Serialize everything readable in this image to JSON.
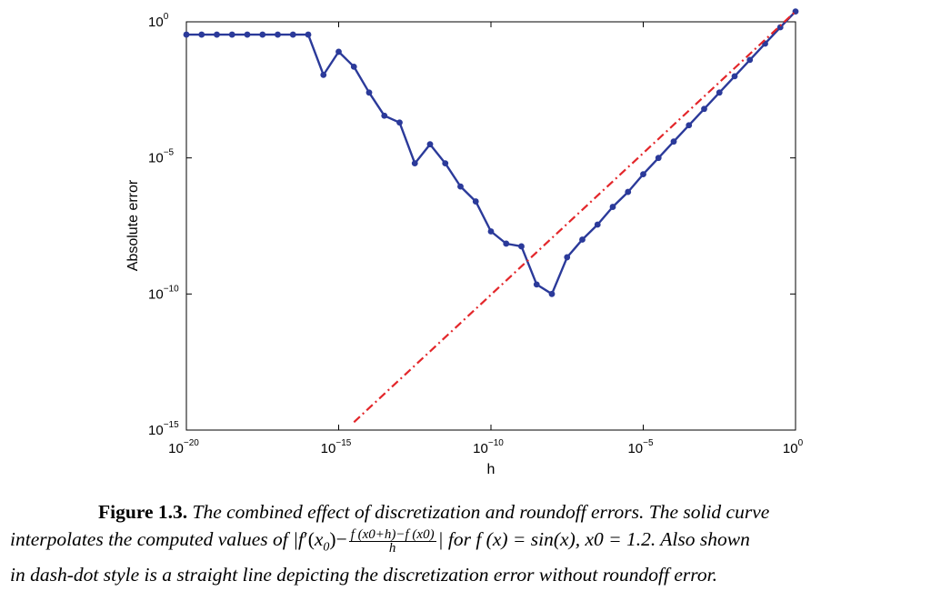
{
  "chart_data": {
    "type": "line",
    "xlabel": "h",
    "ylabel": "Absolute error",
    "xscale": "log",
    "yscale": "log",
    "xlim": [
      1e-20,
      1
    ],
    "ylim": [
      1e-15,
      1
    ],
    "grid": false,
    "x_ticks": [
      {
        "base": "10",
        "exp": "−20",
        "value": 1e-20
      },
      {
        "base": "10",
        "exp": "−15",
        "value": 1e-15
      },
      {
        "base": "10",
        "exp": "−10",
        "value": 1e-10
      },
      {
        "base": "10",
        "exp": "−5",
        "value": 1e-05
      },
      {
        "base": "10",
        "exp": "0",
        "value": 1
      }
    ],
    "y_ticks": [
      {
        "base": "10",
        "exp": "0",
        "value": 1
      },
      {
        "base": "10",
        "exp": "−5",
        "value": 1e-05
      },
      {
        "base": "10",
        "exp": "−10",
        "value": 1e-10
      },
      {
        "base": "10",
        "exp": "−15",
        "value": 1e-15
      }
    ],
    "series": [
      {
        "style": "solid",
        "marker": "circle",
        "color": "#2b3a9a",
        "x_exp": [
          -20,
          -19.5,
          -19,
          -18.5,
          -18,
          -17.5,
          -17,
          -16.5,
          -16,
          -15.5,
          -15,
          -14.5,
          -14,
          -13.5,
          -13,
          -12.5,
          -12,
          -11.5,
          -11,
          -10.5,
          -10,
          -9.5,
          -9,
          -8.5,
          -8,
          -7.5,
          -7,
          -6.5,
          -6,
          -5.5,
          -5,
          -4.5,
          -4,
          -3.5,
          -3,
          -2.5,
          -2,
          -1.5,
          -1,
          -0.5,
          0
        ],
        "y_exp": [
          -0.47,
          -0.47,
          -0.47,
          -0.47,
          -0.47,
          -0.47,
          -0.47,
          -0.47,
          -0.47,
          -1.95,
          -1.1,
          -1.65,
          -2.6,
          -3.45,
          -3.7,
          -5.2,
          -4.5,
          -5.2,
          -6.05,
          -6.6,
          -7.7,
          -8.15,
          -8.25,
          -9.65,
          -10.0,
          -8.65,
          -8.0,
          -7.45,
          -6.8,
          -6.25,
          -5.6,
          -5.0,
          -4.4,
          -3.8,
          -3.2,
          -2.6,
          -2.0,
          -1.4,
          -0.8,
          -0.2,
          0.38
        ]
      },
      {
        "style": "dash-dot",
        "color": "#e3262a",
        "x_exp": [
          -14.5,
          0
        ],
        "y_exp": [
          -14.71,
          0.38
        ]
      }
    ]
  },
  "caption": {
    "label": "Figure 1.3.",
    "line1": "The combined effect of discretization and roundoff errors. The solid curve",
    "line2_pre": "interpolates the computed values of |",
    "line2_f": "f",
    "line2_prime": "′(",
    "line2_x0": "x",
    "line2_sub0": "0",
    "line2_mid": ")−",
    "frac_num": "f (x0+h)−f (x0)",
    "frac_den": "h",
    "line2_post": "| for f (x) = sin(x), x0 = 1.2. Also shown",
    "line3": "in dash-dot style is a straight line depicting the discretization error without roundoff error."
  }
}
